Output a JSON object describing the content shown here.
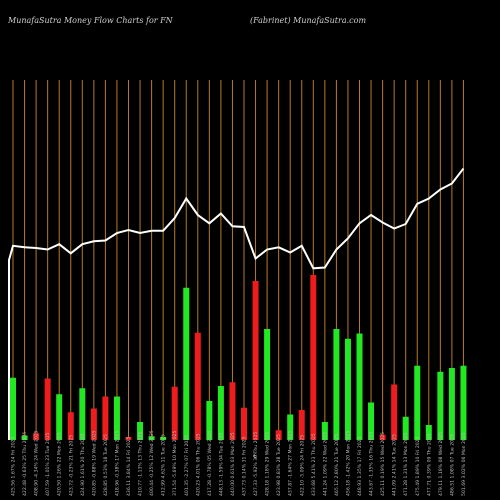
{
  "header": {
    "left": "MunafaSutra  Money Flow  Charts for FN",
    "right": "(Fabrinet) MunafaSutra.com"
  },
  "colors": {
    "background": "#000000",
    "grid": "#b87a22",
    "up": "#22e822",
    "down": "#ee1c1c",
    "line": "#ffffff",
    "labels": "#bdbdbd"
  },
  "chart_data": {
    "type": "bar",
    "categories": [
      "425.56 1.67% 24 Fri 2025",
      "422.48 -0.63% 25 Thu 2025",
      "408.90 -4.34% 24 Wed 2025",
      "407.59 -1.01% 23 Tue 2025",
      "420.50 1.26% 22 Mon 2025",
      "423.72 -0.23% 21 Fri 2025",
      "424.90 1.61% 20 Thu 2025",
      "420.85 -0.88% 19 Wed 2025",
      "428.85 0.53% 18 Tue 2025",
      "418.96 -0.38% 17 Mon 2025",
      "436.11 3.84% 14 Fri 2025",
      "410.77 -1.13% 13 Thu 2025",
      "400.44 -0.25% 12 Wed 2025",
      "412.99 4.62% 11 Tue 2025",
      "371.54 -5.69% 10 Mon 2025",
      "401.35 -2.27% 07 Fri 2025",
      "420.23 4.01% 06 Thu 2025",
      "417.28 -0.78% 05 Wed 2025",
      "448.13 -1.59% 04 Tue 2025",
      "440.00 0.61% 03 Mon 2025",
      "437.73 0.14% 31 Fri 2025",
      "427.33 -5.92% 30 Thu 2025",
      "428.18 1.18% 29 Wed 2025",
      "423.98 0.83% 28 Tue 2025",
      "437.87 -1.64% 27 Mon 2025",
      "422.10 -5.09% 24 Fri 2025",
      "433.68 5.41% 23 Thu 2025",
      "441.24 1.09% 22 Wed 2025",
      "465.12 2.80% 21 Tue 2025",
      "456.18 -1.42% 20 Mon 2025",
      "448.93 1.35% 17 Fri 2025",
      "443.67 -1.35% 16 Thu 2025",
      "425.11 0.19% 15 Wed 2025",
      "441.09 2.41% 14 Tue 2025",
      "471.28 1.31% 13 Mon 2025",
      "475.49 1.89% 10 Fri 2025",
      "477.71 0.39% 09 Thu 2025",
      "479.11 1.18% 08 Wed 2025",
      "486.51 1.08% 07 Tue 2025",
      "501.69 3.02% 06 Mon 2025"
    ],
    "series": [
      {
        "values": [
          8.3,
          0.6,
          0.9,
          8.2,
          6.1,
          3.7,
          6.9,
          4.2,
          5.8,
          5.8,
          0.4,
          2.4,
          0.5,
          0.4,
          7.1,
          20.3,
          14.3,
          5.2,
          7.2,
          7.7,
          4.3,
          21.2,
          14.8,
          1.3,
          3.4,
          4.0,
          22.0,
          2.4,
          14.8,
          13.5,
          14.2,
          5.0,
          0.7,
          7.4,
          3.1,
          9.9,
          2.0,
          9.1,
          9.6,
          9.9
        ]
      }
    ],
    "bar_direction": [
      "up",
      "up",
      "down",
      "down",
      "up",
      "down",
      "up",
      "down",
      "down",
      "up",
      "down",
      "up",
      "up",
      "up",
      "down",
      "up",
      "down",
      "up",
      "up",
      "down",
      "down",
      "down",
      "up",
      "down",
      "up",
      "down",
      "down",
      "up",
      "up",
      "up",
      "up",
      "up",
      "down",
      "down",
      "up",
      "up",
      "up",
      "up",
      "up",
      "up"
    ],
    "money_flow_line": [
      24,
      25.9,
      25.7,
      25.6,
      25.4,
      26.1,
      24.9,
      26.1,
      26.5,
      26.6,
      27.6,
      28.0,
      27.6,
      27.9,
      27.9,
      29.6,
      32.2,
      30.0,
      28.9,
      30.2,
      28.5,
      28.4,
      24.2,
      25.4,
      25.7,
      25.0,
      25.9,
      22.9,
      23.0,
      25.4,
      26.9,
      28.9,
      30.0,
      29.0,
      28.2,
      28.8,
      31.5,
      32.2,
      33.4,
      34.2,
      36.2
    ],
    "ylim": [
      0,
      48
    ],
    "grid": true
  }
}
